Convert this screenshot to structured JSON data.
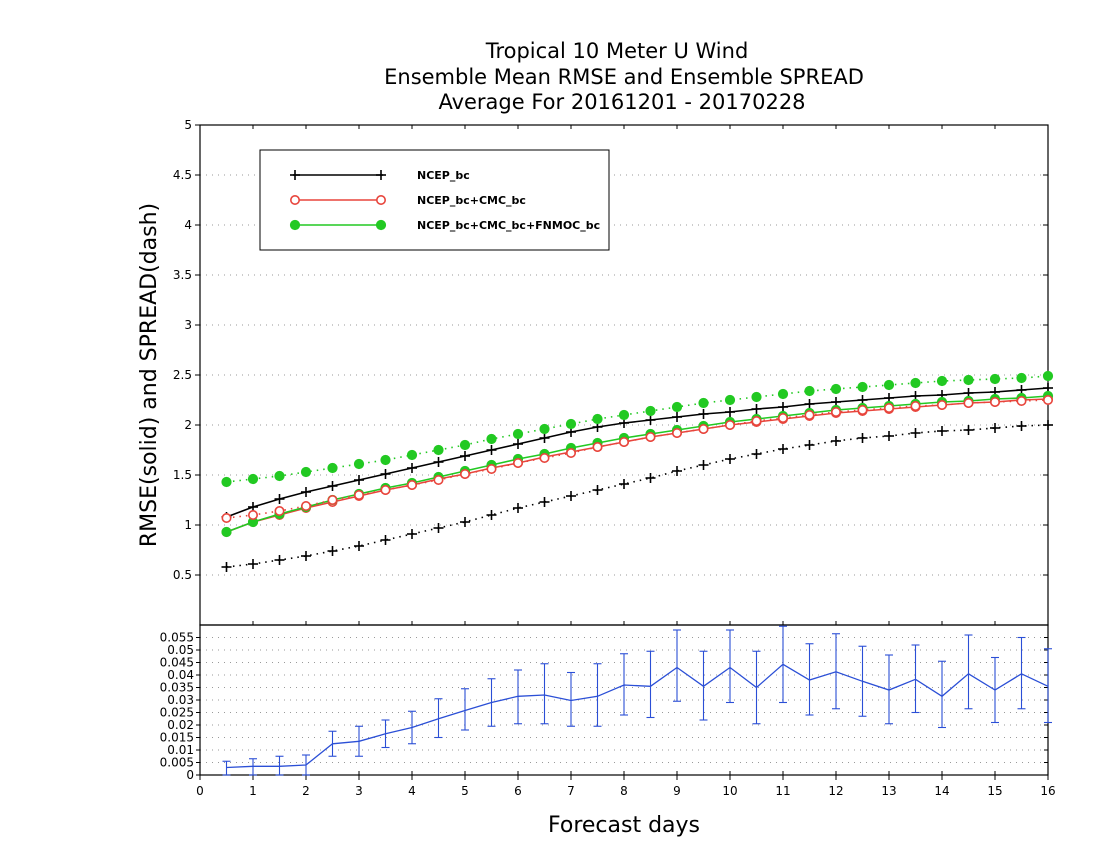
{
  "colors": {
    "NCEP_bc": "#000000",
    "NCEP_bc+CMC_bc": "#e8453c",
    "NCEP_bc+CMC_bc+FNMOC_bc": "#22c922",
    "difference": "#2b4fd6",
    "grid": "#9a9a9a"
  },
  "chart_data": [
    {
      "type": "line",
      "title": [
        "Tropical 10 Meter U Wind",
        "Ensemble Mean RMSE and Ensemble SPREAD",
        "Average For 20161201 - 20170228"
      ],
      "ylabel": "RMSE(solid) and SPREAD(dash)",
      "xlim": [
        0,
        16
      ],
      "ylim": [
        0,
        5
      ],
      "y_ticks": [
        "0.5",
        "1",
        "1.5",
        "2",
        "2.5",
        "3",
        "3.5",
        "4",
        "4.5",
        "5"
      ],
      "grid": true,
      "legend_position": "top-left",
      "x": [
        0.5,
        1,
        1.5,
        2,
        2.5,
        3,
        3.5,
        4,
        4.5,
        5,
        5.5,
        6,
        6.5,
        7,
        7.5,
        8,
        8.5,
        9,
        9.5,
        10,
        10.5,
        11,
        11.5,
        12,
        12.5,
        13,
        13.5,
        14,
        14.5,
        15,
        15.5,
        16
      ],
      "series": [
        {
          "name": "NCEP_bc",
          "metric": "RMSE",
          "style": "solid",
          "marker": "plus",
          "values": [
            1.08,
            1.18,
            1.26,
            1.33,
            1.39,
            1.45,
            1.51,
            1.57,
            1.63,
            1.69,
            1.75,
            1.81,
            1.87,
            1.93,
            1.98,
            2.02,
            2.05,
            2.08,
            2.11,
            2.13,
            2.16,
            2.18,
            2.21,
            2.23,
            2.25,
            2.27,
            2.29,
            2.3,
            2.32,
            2.33,
            2.35,
            2.37
          ]
        },
        {
          "name": "NCEP_bc+CMC_bc",
          "metric": "RMSE",
          "style": "solid",
          "marker": "open-circle",
          "values": [
            0.93,
            1.03,
            1.1,
            1.17,
            1.23,
            1.29,
            1.35,
            1.4,
            1.46,
            1.51,
            1.57,
            1.62,
            1.68,
            1.73,
            1.78,
            1.83,
            1.88,
            1.92,
            1.96,
            2.0,
            2.03,
            2.06,
            2.09,
            2.12,
            2.14,
            2.16,
            2.18,
            2.2,
            2.22,
            2.23,
            2.25,
            2.26
          ]
        },
        {
          "name": "NCEP_bc+CMC_bc+FNMOC_bc",
          "metric": "RMSE",
          "style": "solid",
          "marker": "filled-circle",
          "values": [
            0.93,
            1.03,
            1.11,
            1.18,
            1.25,
            1.31,
            1.37,
            1.42,
            1.48,
            1.54,
            1.6,
            1.66,
            1.71,
            1.77,
            1.82,
            1.87,
            1.91,
            1.95,
            1.99,
            2.03,
            2.06,
            2.09,
            2.12,
            2.15,
            2.17,
            2.19,
            2.21,
            2.23,
            2.24,
            2.26,
            2.27,
            2.29
          ]
        },
        {
          "name": "NCEP_bc",
          "metric": "SPREAD",
          "style": "dotted",
          "marker": "plus",
          "values": [
            0.58,
            0.61,
            0.65,
            0.69,
            0.74,
            0.79,
            0.85,
            0.91,
            0.97,
            1.03,
            1.1,
            1.17,
            1.23,
            1.29,
            1.35,
            1.41,
            1.47,
            1.54,
            1.6,
            1.66,
            1.71,
            1.76,
            1.8,
            1.84,
            1.87,
            1.89,
            1.92,
            1.94,
            1.95,
            1.97,
            1.99,
            2.0
          ]
        },
        {
          "name": "NCEP_bc+CMC_bc",
          "metric": "SPREAD",
          "style": "dotted",
          "marker": "open-circle",
          "values": [
            1.07,
            1.1,
            1.14,
            1.19,
            1.25,
            1.3,
            1.35,
            1.4,
            1.45,
            1.51,
            1.56,
            1.62,
            1.67,
            1.72,
            1.78,
            1.83,
            1.88,
            1.92,
            1.96,
            2.0,
            2.04,
            2.07,
            2.1,
            2.13,
            2.15,
            2.17,
            2.19,
            2.2,
            2.22,
            2.23,
            2.24,
            2.25
          ]
        },
        {
          "name": "NCEP_bc+CMC_bc+FNMOC_bc",
          "metric": "SPREAD",
          "style": "dotted",
          "marker": "filled-circle",
          "values": [
            1.43,
            1.46,
            1.49,
            1.53,
            1.57,
            1.61,
            1.65,
            1.7,
            1.75,
            1.8,
            1.86,
            1.91,
            1.96,
            2.01,
            2.06,
            2.1,
            2.14,
            2.18,
            2.22,
            2.25,
            2.28,
            2.31,
            2.34,
            2.36,
            2.38,
            2.4,
            2.42,
            2.44,
            2.45,
            2.46,
            2.47,
            2.49
          ]
        }
      ]
    },
    {
      "type": "line",
      "xlabel": "Forecast days",
      "xlim": [
        0,
        16
      ],
      "ylim": [
        0,
        0.06
      ],
      "x_ticks": [
        "0",
        "1",
        "2",
        "3",
        "4",
        "5",
        "6",
        "7",
        "8",
        "9",
        "10",
        "11",
        "12",
        "13",
        "14",
        "15",
        "16"
      ],
      "y_ticks": [
        "0",
        "0.005",
        "0.01",
        "0.015",
        "0.02",
        "0.025",
        "0.03",
        "0.035",
        "0.04",
        "0.045",
        "0.05",
        "0.055"
      ],
      "grid": true,
      "x": [
        0.5,
        1,
        1.5,
        2,
        2.5,
        3,
        3.5,
        4,
        4.5,
        5,
        5.5,
        6,
        6.5,
        7,
        7.5,
        8,
        8.5,
        9,
        9.5,
        10,
        10.5,
        11,
        11.5,
        12,
        12.5,
        13,
        13.5,
        14,
        14.5,
        15,
        15.5,
        16
      ],
      "series": [
        {
          "style": "solid",
          "marker": "errorbar",
          "values": [
            0.003,
            0.0035,
            0.0035,
            0.004,
            0.0125,
            0.0135,
            0.0165,
            0.019,
            0.0225,
            0.0258,
            0.029,
            0.0315,
            0.032,
            0.0298,
            0.0315,
            0.036,
            0.0355,
            0.043,
            0.0355,
            0.043,
            0.035,
            0.0443,
            0.038,
            0.0413,
            0.0375,
            0.034,
            0.0383,
            0.0315,
            0.0405,
            0.034,
            0.0405,
            0.0355
          ],
          "error_low": [
            0.0,
            0.0,
            0.0,
            0.0,
            0.0075,
            0.0075,
            0.011,
            0.0125,
            0.015,
            0.018,
            0.0195,
            0.0205,
            0.0205,
            0.0195,
            0.0195,
            0.024,
            0.023,
            0.0295,
            0.022,
            0.029,
            0.0205,
            0.029,
            0.024,
            0.0265,
            0.0235,
            0.0205,
            0.025,
            0.019,
            0.0265,
            0.021,
            0.0265,
            0.021
          ],
          "error_high": [
            0.0055,
            0.0065,
            0.0075,
            0.008,
            0.0175,
            0.0195,
            0.022,
            0.0255,
            0.0305,
            0.0345,
            0.0385,
            0.042,
            0.0445,
            0.041,
            0.0445,
            0.0485,
            0.0495,
            0.058,
            0.0495,
            0.058,
            0.0495,
            0.0595,
            0.0525,
            0.0565,
            0.0515,
            0.048,
            0.052,
            0.0455,
            0.056,
            0.047,
            0.055,
            0.0505
          ]
        }
      ]
    }
  ]
}
